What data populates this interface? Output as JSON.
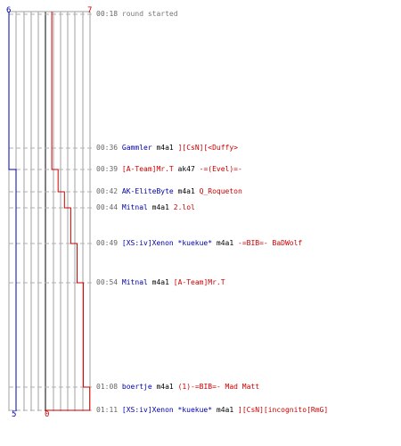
{
  "colors": {
    "blue": "#0000aa",
    "red": "#cc0000",
    "grid": "#a0a0a0",
    "center": "#808080",
    "dash": "#b0b0b0",
    "time": "#666666"
  },
  "scores": {
    "blue_start": "6",
    "red_end": "7",
    "blue_end": "5",
    "red_start": "0"
  },
  "events": [
    {
      "time": "00:18",
      "text": "round started",
      "type": "info"
    },
    {
      "time": "00:36",
      "killer": "Gammler",
      "killer_team": "blue",
      "weapon": "m4a1",
      "victim": "][CsN][<Duffy>",
      "victim_team": "red",
      "score": [
        6,
        1
      ]
    },
    {
      "time": "00:39",
      "killer": "[A-Team]Mr.T",
      "killer_team": "red",
      "weapon": "ak47",
      "victim": "-=(Evel)=-",
      "victim_team": "red",
      "score": [
        5,
        1
      ]
    },
    {
      "time": "00:42",
      "killer": "AK-EliteByte",
      "killer_team": "blue",
      "weapon": "m4a1",
      "victim": "Q_Roqueton",
      "victim_team": "red",
      "score": [
        5,
        2
      ]
    },
    {
      "time": "00:44",
      "killer": "Mitnal",
      "killer_team": "blue",
      "weapon": "m4a1",
      "victim": "2.lol",
      "victim_team": "red",
      "score": [
        5,
        3
      ]
    },
    {
      "time": "00:49",
      "killer": "[XS:iv]Xenon *kuekue*",
      "killer_team": "blue",
      "weapon": "m4a1",
      "victim": "-=BIB=- BaDWolf",
      "victim_team": "red",
      "score": [
        5,
        4
      ]
    },
    {
      "time": "00:54",
      "killer": "Mitnal",
      "killer_team": "blue",
      "weapon": "m4a1",
      "victim": "[A-Team]Mr.T",
      "victim_team": "red",
      "score": [
        5,
        5
      ]
    },
    {
      "time": "01:08",
      "killer": "boertje",
      "killer_team": "blue",
      "weapon": "m4a1",
      "victim": "(1)-=BIB=- Mad Matt",
      "victim_team": "red",
      "score": [
        5,
        6
      ]
    },
    {
      "time": "01:11",
      "killer": "[XS:iv]Xenon *kuekue*",
      "killer_team": "blue",
      "weapon": "m4a1",
      "victim": "][CsN][incognito[RmG]",
      "victim_team": "red",
      "score": [
        5,
        7
      ]
    }
  ]
}
